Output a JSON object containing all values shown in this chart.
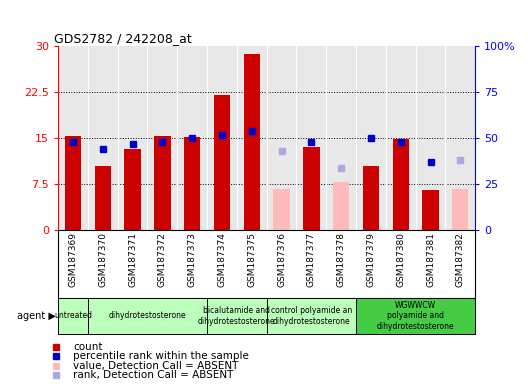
{
  "title": "GDS2782 / 242208_at",
  "samples": [
    "GSM187369",
    "GSM187370",
    "GSM187371",
    "GSM187372",
    "GSM187373",
    "GSM187374",
    "GSM187375",
    "GSM187376",
    "GSM187377",
    "GSM187378",
    "GSM187379",
    "GSM187380",
    "GSM187381",
    "GSM187382"
  ],
  "count_values": [
    15.3,
    10.5,
    13.2,
    15.3,
    15.2,
    22.0,
    28.7,
    null,
    13.5,
    null,
    10.5,
    14.8,
    6.5,
    null
  ],
  "count_absent": [
    null,
    null,
    null,
    null,
    null,
    null,
    null,
    6.8,
    null,
    7.8,
    null,
    null,
    null,
    6.8
  ],
  "rank_values": [
    48,
    44,
    47,
    48,
    50,
    52,
    54,
    null,
    48,
    null,
    50,
    48,
    37,
    null
  ],
  "rank_absent": [
    null,
    null,
    null,
    null,
    null,
    null,
    null,
    43,
    null,
    34,
    null,
    null,
    null,
    38
  ],
  "agent_groups": [
    {
      "label": "untreated",
      "n_samples": 1,
      "color": "#bbffbb"
    },
    {
      "label": "dihydrotestosterone",
      "n_samples": 4,
      "color": "#bbffbb"
    },
    {
      "label": "bicalutamide and\ndihydrotestosterone",
      "n_samples": 2,
      "color": "#bbffbb"
    },
    {
      "label": "control polyamide an\ndihydrotestosterone",
      "n_samples": 3,
      "color": "#bbffbb"
    },
    {
      "label": "WGWWCW\npolyamide and\ndihydrotestosterone",
      "n_samples": 4,
      "color": "#44cc44"
    }
  ],
  "ylim_left": [
    0,
    30
  ],
  "ylim_right": [
    0,
    100
  ],
  "yticks_left": [
    0,
    7.5,
    15,
    22.5,
    30
  ],
  "yticks_right": [
    0,
    25,
    50,
    75,
    100
  ],
  "ytick_labels_left": [
    "0",
    "7.5",
    "15",
    "22.5",
    "30"
  ],
  "ytick_labels_right": [
    "0",
    "25",
    "50",
    "75",
    "100%"
  ],
  "bar_color_present": "#cc0000",
  "bar_color_absent": "#ffbbbb",
  "marker_color_present": "#0000cc",
  "marker_color_absent": "#aaaadd",
  "bar_width": 0.55,
  "marker_size": 5,
  "plot_bg": "#e8e8e8",
  "tick_bg": "#c8c8c8",
  "grid_color": "#555555",
  "vline_color": "#ffffff",
  "title_fontsize": 9,
  "tick_fontsize": 6.5,
  "legend_fontsize": 7.5
}
